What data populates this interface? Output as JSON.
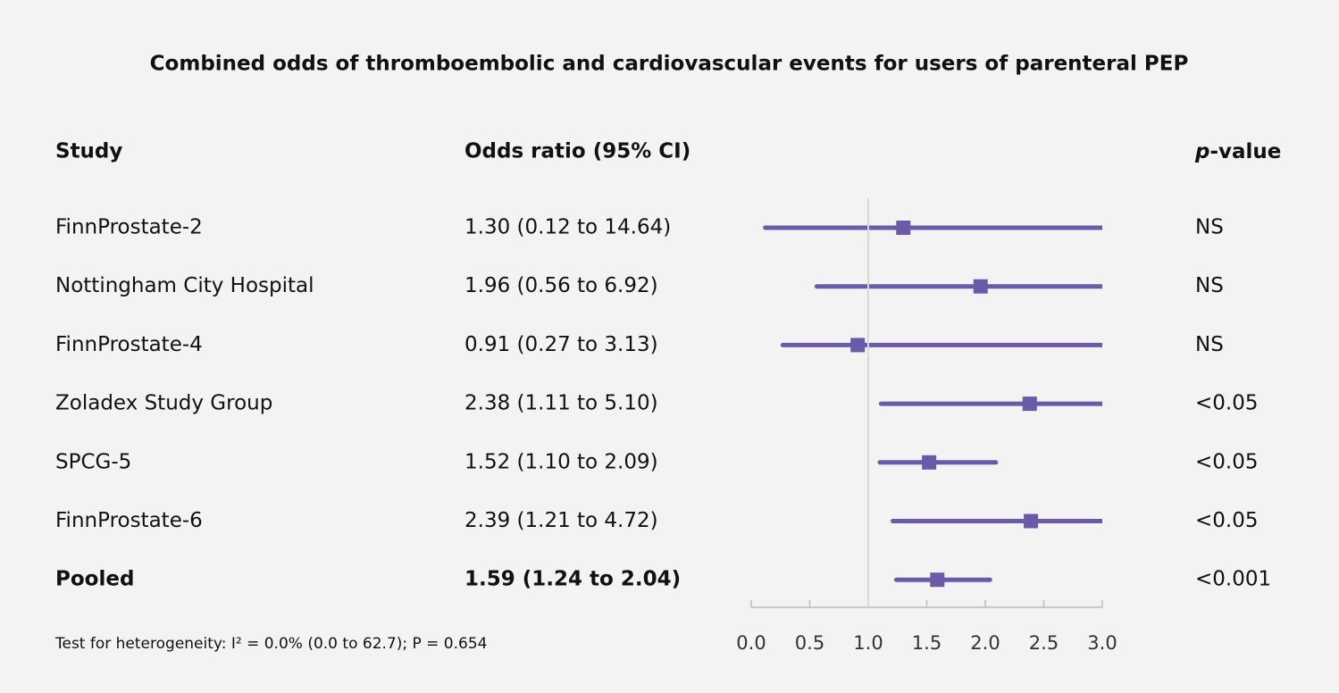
{
  "chart_data": {
    "type": "forest",
    "title": "Combined odds of thromboembolic and cardiovascular events for users of parenteral PEP",
    "columns": [
      "Study",
      "Odds ratio (95% CI)",
      "p-value"
    ],
    "categories": [
      "FinnProstate-2",
      "Nottingham City Hospital",
      "FinnProstate-4",
      "Zoladex Study Group",
      "SPCG-5",
      "FinnProstate-6",
      "Pooled"
    ],
    "values": [
      1.3,
      1.96,
      0.91,
      2.38,
      1.52,
      2.39,
      1.59
    ],
    "lower": [
      0.12,
      0.56,
      0.27,
      1.11,
      1.1,
      1.21,
      1.24
    ],
    "upper": [
      14.64,
      6.92,
      3.13,
      5.1,
      2.09,
      4.72,
      2.04
    ],
    "value_labels": [
      "1.30 (0.12 to 14.64)",
      "1.96 (0.56 to 6.92)",
      "0.91 (0.27 to 3.13)",
      "2.38 (1.11 to 5.10)",
      "1.52 (1.10 to 2.09)",
      "2.39 (1.21 to 4.72)",
      "1.59 (1.24 to 2.04)"
    ],
    "p_values": [
      "NS",
      "NS",
      "NS",
      "<0.05",
      "<0.05",
      "<0.05",
      "<0.001"
    ],
    "reference": 1,
    "color": "#6a5aa8",
    "xlim": [
      0,
      3
    ],
    "xticks": [
      {
        "value": 0,
        "label": "0.0"
      },
      0.5,
      {
        "value": 1,
        "label": "1.0"
      },
      1.5,
      {
        "value": 2,
        "label": "2.0"
      },
      2.5,
      {
        "value": 3,
        "label": "3.0"
      }
    ],
    "footnote": "Test for heterogeneity: I² = 0.0% (0.0 to 62.7); P = 0.654"
  }
}
